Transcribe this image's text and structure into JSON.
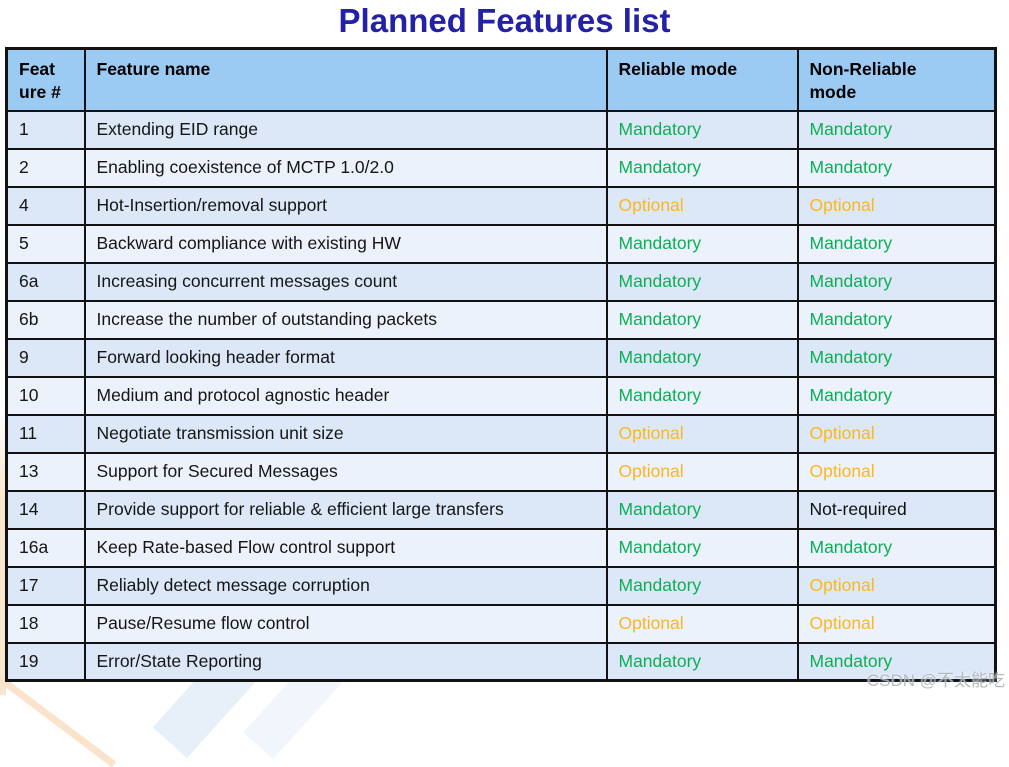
{
  "page": {
    "title": "Planned Features list",
    "watermark": "CSDN @不太能吃"
  },
  "colors": {
    "title": "#2321A5",
    "header_bg": "#9BCAF2",
    "row_odd_bg": "#DCE8F7",
    "row_even_bg": "#ECF2FB",
    "border": "#121212",
    "mandatory": "#0CAF56",
    "optional": "#FBB71F",
    "not_required": "#111111"
  },
  "table": {
    "columns": [
      {
        "label": "Feat\nure #"
      },
      {
        "label": "Feature name"
      },
      {
        "label": "Reliable mode"
      },
      {
        "label": "Non-Reliable\nmode"
      }
    ],
    "rows": [
      {
        "num": "1",
        "name": "Extending EID range",
        "reliable": {
          "text": "Mandatory",
          "status": "mandatory"
        },
        "non_reliable": {
          "text": "Mandatory",
          "status": "mandatory"
        }
      },
      {
        "num": "2",
        "name": "Enabling coexistence of MCTP 1.0/2.0",
        "reliable": {
          "text": "Mandatory",
          "status": "mandatory"
        },
        "non_reliable": {
          "text": "Mandatory",
          "status": "mandatory"
        }
      },
      {
        "num": "4",
        "name": "Hot-Insertion/removal support",
        "reliable": {
          "text": "Optional",
          "status": "optional"
        },
        "non_reliable": {
          "text": "Optional",
          "status": "optional"
        }
      },
      {
        "num": "5",
        "name": "Backward compliance with existing HW",
        "reliable": {
          "text": "Mandatory",
          "status": "mandatory"
        },
        "non_reliable": {
          "text": "Mandatory",
          "status": "mandatory"
        }
      },
      {
        "num": "6a",
        "name": "Increasing concurrent messages count",
        "reliable": {
          "text": "Mandatory",
          "status": "mandatory"
        },
        "non_reliable": {
          "text": "Mandatory",
          "status": "mandatory"
        }
      },
      {
        "num": "6b",
        "name": "Increase the number of outstanding packets",
        "reliable": {
          "text": "Mandatory",
          "status": "mandatory"
        },
        "non_reliable": {
          "text": "Mandatory",
          "status": "mandatory"
        }
      },
      {
        "num": "9",
        "name": "Forward looking header format",
        "reliable": {
          "text": "Mandatory",
          "status": "mandatory"
        },
        "non_reliable": {
          "text": "Mandatory",
          "status": "mandatory"
        }
      },
      {
        "num": "10",
        "name": "Medium and protocol agnostic header",
        "reliable": {
          "text": "Mandatory",
          "status": "mandatory"
        },
        "non_reliable": {
          "text": "Mandatory",
          "status": "mandatory"
        }
      },
      {
        "num": "11",
        "name": "Negotiate transmission unit size",
        "reliable": {
          "text": "Optional",
          "status": "optional"
        },
        "non_reliable": {
          "text": "Optional",
          "status": "optional"
        }
      },
      {
        "num": "13",
        "name": "Support for Secured Messages",
        "reliable": {
          "text": "Optional",
          "status": "optional"
        },
        "non_reliable": {
          "text": "Optional",
          "status": "optional"
        }
      },
      {
        "num": "14",
        "name": "Provide support for reliable & efficient large transfers",
        "reliable": {
          "text": "Mandatory",
          "status": "mandatory"
        },
        "non_reliable": {
          "text": "Not-required",
          "status": "not-required"
        }
      },
      {
        "num": "16a",
        "name": "Keep Rate-based Flow control support",
        "reliable": {
          "text": "Mandatory",
          "status": "mandatory"
        },
        "non_reliable": {
          "text": "Mandatory",
          "status": "mandatory"
        }
      },
      {
        "num": "17",
        "name": "Reliably detect message corruption",
        "reliable": {
          "text": "Mandatory",
          "status": "mandatory"
        },
        "non_reliable": {
          "text": "Optional",
          "status": "optional"
        }
      },
      {
        "num": "18",
        "name": "Pause/Resume flow control",
        "reliable": {
          "text": "Optional",
          "status": "optional"
        },
        "non_reliable": {
          "text": "Optional",
          "status": "optional"
        }
      },
      {
        "num": "19",
        "name": "Error/State Reporting",
        "reliable": {
          "text": "Mandatory",
          "status": "mandatory"
        },
        "non_reliable": {
          "text": "Mandatory",
          "status": "mandatory"
        }
      }
    ]
  }
}
